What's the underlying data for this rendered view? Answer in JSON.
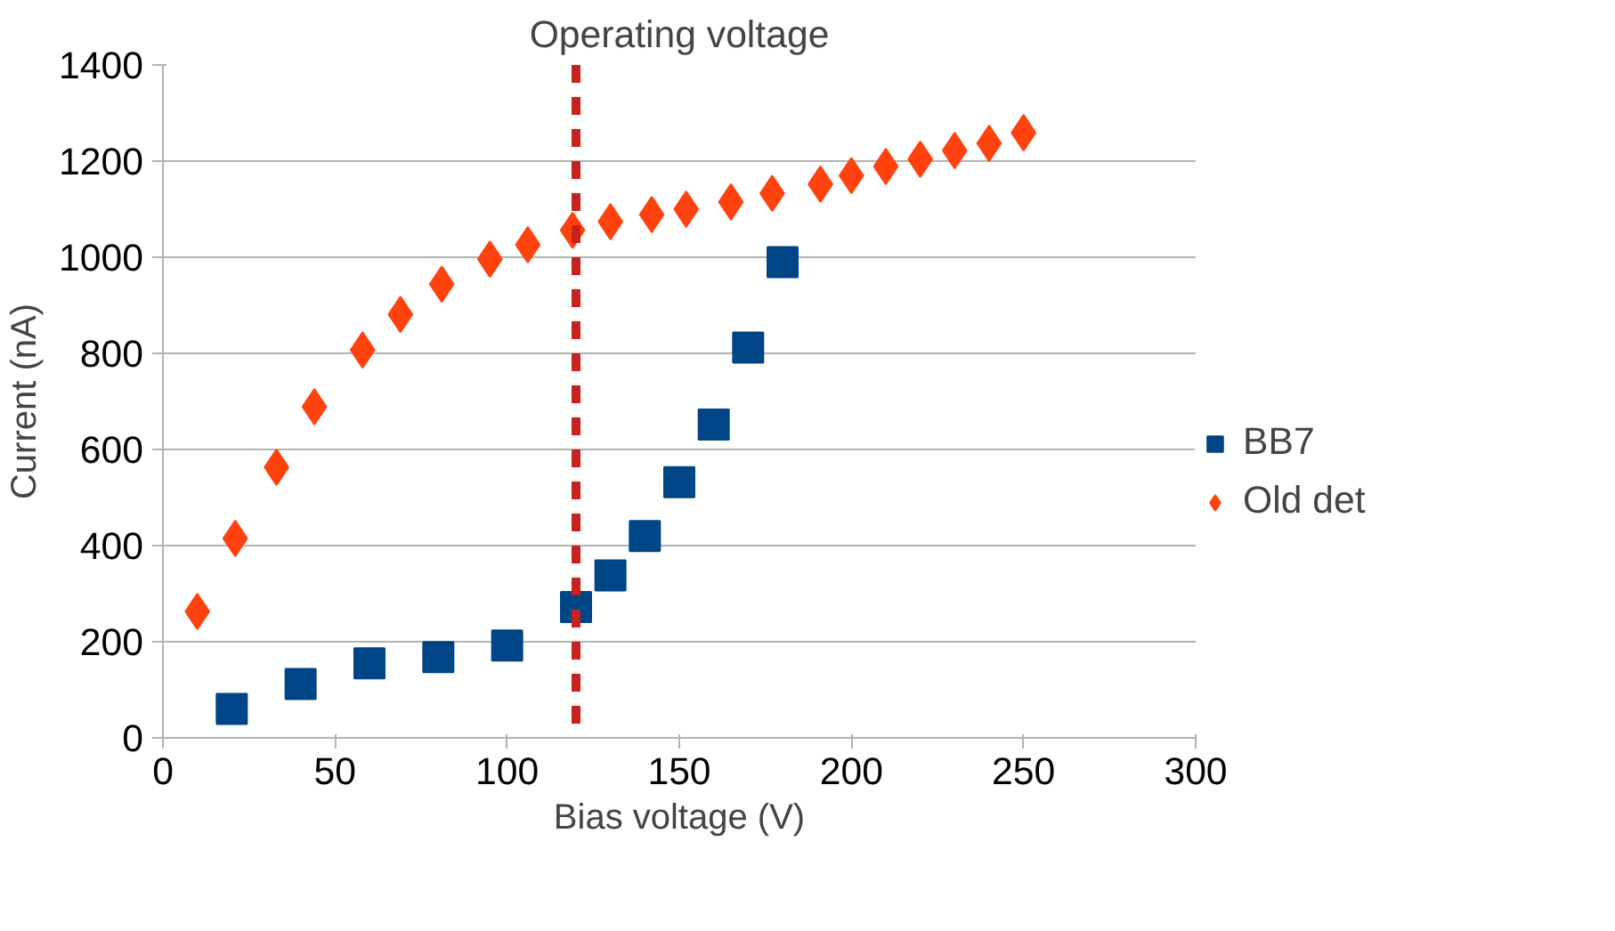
{
  "chart_data": {
    "type": "scatter",
    "xlabel": "Bias voltage (V)",
    "ylabel": "Current (nA)",
    "xlim": [
      0,
      300
    ],
    "xticks": [
      0,
      50,
      100,
      150,
      200,
      250,
      300
    ],
    "ylim": [
      0,
      1400
    ],
    "yticks": [
      0,
      200,
      400,
      600,
      800,
      1000,
      1200,
      1400
    ],
    "grid": "y",
    "legend": "right",
    "series": [
      {
        "name": "BB7",
        "color": "#004586",
        "marker": "square",
        "x": [
          20,
          40,
          60,
          80,
          100,
          120,
          130,
          140,
          150,
          160,
          170,
          180
        ],
        "values": [
          60,
          112,
          155,
          168,
          192,
          272,
          338,
          420,
          532,
          652,
          812,
          990
        ]
      },
      {
        "name": "Old det",
        "color": "#ff420e",
        "marker": "diamond",
        "x": [
          10,
          21,
          33,
          44,
          58,
          69,
          81,
          95,
          106,
          119,
          130,
          142,
          152,
          165,
          177,
          191,
          200,
          210,
          220,
          230,
          240,
          250
        ],
        "values": [
          263,
          415,
          563,
          689,
          807,
          881,
          944,
          996,
          1026,
          1056,
          1074,
          1089,
          1100,
          1115,
          1133,
          1152,
          1170,
          1189,
          1204,
          1222,
          1237,
          1259
        ]
      }
    ],
    "ref_lines": [
      {
        "axis": "x",
        "value": 120,
        "label": "Operating voltage",
        "color": "#c9211e",
        "line_style": "dashed"
      }
    ]
  }
}
